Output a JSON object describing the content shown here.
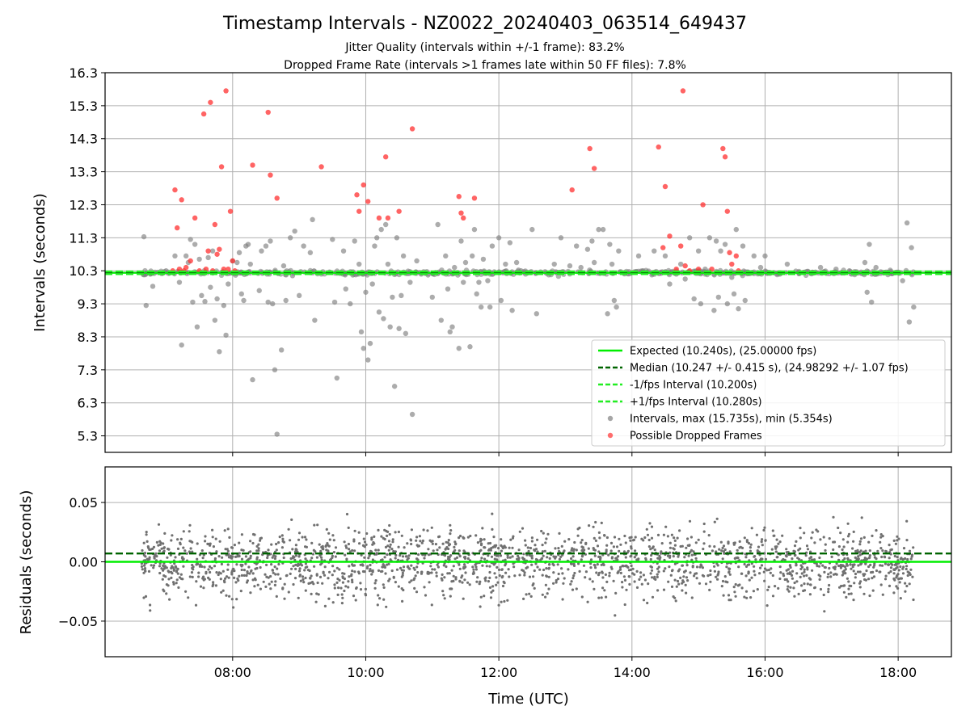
{
  "title": "Timestamp Intervals - NZ0022_20240403_063514_649437",
  "subtitle_1": "Jitter Quality (intervals within +/-1 frame): 83.2%",
  "subtitle_2": "Dropped Frame Rate (intervals >1 frames late within 50 FF files): 7.8%",
  "chart_data": [
    {
      "type": "scatter",
      "ylabel": "Intervals (seconds)",
      "ylim": [
        4.8,
        16.3
      ],
      "yticks": [
        "5.3",
        "6.3",
        "7.3",
        "8.3",
        "9.3",
        "10.3",
        "11.3",
        "12.3",
        "13.3",
        "14.3",
        "15.3",
        "16.3"
      ],
      "xlim": [
        "06:05",
        "18:48"
      ],
      "grid": true,
      "legend_position": "lower-right",
      "reference_lines": [
        {
          "name": "Expected (10.240s), (25.00000 fps)",
          "y": 10.24,
          "style": "solid",
          "color": "#00ee00"
        },
        {
          "name": "Median (10.247 +/- 0.415 s), (24.98292 +/- 1.07 fps)",
          "y": 10.247,
          "style": "dashed",
          "color": "#006400"
        },
        {
          "name": "-1/fps Interval (10.200s)",
          "y": 10.2,
          "style": "dashed",
          "color": "#22ee22"
        },
        {
          "name": "+1/fps Interval (10.280s)",
          "y": 10.28,
          "style": "dashed",
          "color": "#22ee22"
        }
      ],
      "series": [
        {
          "name": "Intervals, max (15.735s), min (5.354s)",
          "color": "#808080",
          "points_note": "sampled outliers plus dense band near 10.24 s",
          "points": [
            [
              "06:40",
              11.33
            ],
            [
              "06:42",
              9.25
            ],
            [
              "06:48",
              9.83
            ],
            [
              "07:00",
              10.3
            ],
            [
              "07:08",
              10.75
            ],
            [
              "07:12",
              9.95
            ],
            [
              "07:14",
              8.05
            ],
            [
              "07:18",
              10.75
            ],
            [
              "07:20",
              10.55
            ],
            [
              "07:22",
              11.25
            ],
            [
              "07:24",
              9.35
            ],
            [
              "07:26",
              11.1
            ],
            [
              "07:28",
              8.6
            ],
            [
              "07:30",
              10.65
            ],
            [
              "07:32",
              9.55
            ],
            [
              "07:35",
              9.37
            ],
            [
              "07:38",
              10.7
            ],
            [
              "07:40",
              9.8
            ],
            [
              "07:42",
              10.9
            ],
            [
              "07:44",
              8.8
            ],
            [
              "07:46",
              9.45
            ],
            [
              "07:48",
              7.85
            ],
            [
              "07:52",
              9.25
            ],
            [
              "07:54",
              8.35
            ],
            [
              "07:56",
              9.9
            ],
            [
              "08:00",
              10.6
            ],
            [
              "08:04",
              10.55
            ],
            [
              "08:06",
              10.85
            ],
            [
              "08:08",
              9.6
            ],
            [
              "08:10",
              9.4
            ],
            [
              "08:12",
              11.05
            ],
            [
              "08:14",
              11.1
            ],
            [
              "08:16",
              10.5
            ],
            [
              "08:18",
              7.0
            ],
            [
              "08:24",
              9.7
            ],
            [
              "08:26",
              10.9
            ],
            [
              "08:30",
              11.05
            ],
            [
              "08:32",
              9.35
            ],
            [
              "08:34",
              11.2
            ],
            [
              "08:36",
              9.3
            ],
            [
              "08:38",
              7.3
            ],
            [
              "08:40",
              5.35
            ],
            [
              "08:44",
              7.9
            ],
            [
              "08:46",
              10.45
            ],
            [
              "08:48",
              9.4
            ],
            [
              "08:52",
              11.3
            ],
            [
              "08:54",
              10.15
            ],
            [
              "08:56",
              11.5
            ],
            [
              "09:00",
              9.55
            ],
            [
              "09:04",
              11.05
            ],
            [
              "09:10",
              10.85
            ],
            [
              "09:12",
              11.85
            ],
            [
              "09:14",
              8.8
            ],
            [
              "09:30",
              11.25
            ],
            [
              "09:32",
              9.35
            ],
            [
              "09:34",
              7.05
            ],
            [
              "09:40",
              10.9
            ],
            [
              "09:42",
              9.75
            ],
            [
              "09:46",
              9.3
            ],
            [
              "09:50",
              11.2
            ],
            [
              "09:54",
              10.5
            ],
            [
              "09:56",
              8.45
            ],
            [
              "09:58",
              7.95
            ],
            [
              "10:00",
              9.65
            ],
            [
              "10:02",
              7.6
            ],
            [
              "10:04",
              8.1
            ],
            [
              "10:06",
              9.9
            ],
            [
              "10:08",
              11.05
            ],
            [
              "10:10",
              11.3
            ],
            [
              "10:12",
              9.05
            ],
            [
              "10:14",
              11.55
            ],
            [
              "10:16",
              8.85
            ],
            [
              "10:18",
              11.7
            ],
            [
              "10:20",
              10.5
            ],
            [
              "10:22",
              8.6
            ],
            [
              "10:24",
              9.5
            ],
            [
              "10:26",
              6.8
            ],
            [
              "10:28",
              11.3
            ],
            [
              "10:30",
              8.55
            ],
            [
              "10:32",
              9.55
            ],
            [
              "10:34",
              10.75
            ],
            [
              "10:36",
              8.4
            ],
            [
              "10:40",
              9.95
            ],
            [
              "10:42",
              5.95
            ],
            [
              "10:46",
              10.6
            ],
            [
              "10:50",
              10.2
            ],
            [
              "11:00",
              9.5
            ],
            [
              "11:05",
              11.7
            ],
            [
              "11:08",
              8.8
            ],
            [
              "11:12",
              10.75
            ],
            [
              "11:14",
              9.75
            ],
            [
              "11:16",
              8.45
            ],
            [
              "11:18",
              8.6
            ],
            [
              "11:20",
              10.4
            ],
            [
              "11:24",
              7.95
            ],
            [
              "11:26",
              11.2
            ],
            [
              "11:28",
              9.95
            ],
            [
              "11:30",
              10.55
            ],
            [
              "11:34",
              8.0
            ],
            [
              "11:36",
              10.75
            ],
            [
              "11:38",
              11.55
            ],
            [
              "11:40",
              9.6
            ],
            [
              "11:42",
              9.95
            ],
            [
              "11:44",
              9.2
            ],
            [
              "11:46",
              10.65
            ],
            [
              "11:50",
              10.0
            ],
            [
              "11:52",
              9.2
            ],
            [
              "11:54",
              11.05
            ],
            [
              "12:00",
              11.3
            ],
            [
              "12:02",
              9.4
            ],
            [
              "12:06",
              10.5
            ],
            [
              "12:10",
              11.15
            ],
            [
              "12:12",
              9.1
            ],
            [
              "12:16",
              10.55
            ],
            [
              "12:20",
              10.3
            ],
            [
              "12:30",
              11.55
            ],
            [
              "12:34",
              9.0
            ],
            [
              "12:50",
              10.5
            ],
            [
              "12:56",
              11.3
            ],
            [
              "13:04",
              10.45
            ],
            [
              "13:10",
              11.05
            ],
            [
              "13:14",
              10.4
            ],
            [
              "13:20",
              10.95
            ],
            [
              "13:24",
              11.2
            ],
            [
              "13:26",
              10.55
            ],
            [
              "13:30",
              11.55
            ],
            [
              "13:34",
              11.55
            ],
            [
              "13:38",
              9.0
            ],
            [
              "13:40",
              11.1
            ],
            [
              "13:42",
              10.5
            ],
            [
              "13:44",
              9.4
            ],
            [
              "13:46",
              9.2
            ],
            [
              "13:48",
              10.9
            ],
            [
              "14:06",
              10.75
            ],
            [
              "14:10",
              10.3
            ],
            [
              "14:20",
              10.9
            ],
            [
              "14:30",
              10.75
            ],
            [
              "14:34",
              9.9
            ],
            [
              "14:40",
              10.2
            ],
            [
              "14:44",
              10.5
            ],
            [
              "14:48",
              10.05
            ],
            [
              "14:52",
              11.3
            ],
            [
              "14:56",
              9.45
            ],
            [
              "15:00",
              10.9
            ],
            [
              "15:02",
              9.3
            ],
            [
              "15:06",
              10.35
            ],
            [
              "15:10",
              11.3
            ],
            [
              "15:14",
              9.1
            ],
            [
              "15:16",
              11.2
            ],
            [
              "15:18",
              9.5
            ],
            [
              "15:20",
              10.9
            ],
            [
              "15:24",
              11.1
            ],
            [
              "15:26",
              9.3
            ],
            [
              "15:30",
              10.1
            ],
            [
              "15:32",
              9.6
            ],
            [
              "15:34",
              11.55
            ],
            [
              "15:36",
              9.15
            ],
            [
              "15:40",
              11.05
            ],
            [
              "15:42",
              9.4
            ],
            [
              "15:50",
              10.75
            ],
            [
              "15:56",
              10.4
            ],
            [
              "16:00",
              10.75
            ],
            [
              "16:20",
              10.5
            ],
            [
              "16:30",
              10.25
            ],
            [
              "16:50",
              10.4
            ],
            [
              "17:04",
              10.35
            ],
            [
              "17:16",
              10.3
            ],
            [
              "17:30",
              10.55
            ],
            [
              "17:32",
              9.65
            ],
            [
              "17:34",
              11.1
            ],
            [
              "17:36",
              9.35
            ],
            [
              "17:40",
              10.4
            ],
            [
              "18:04",
              10.0
            ],
            [
              "18:08",
              11.75
            ],
            [
              "18:10",
              8.75
            ],
            [
              "18:12",
              11.0
            ],
            [
              "18:14",
              9.2
            ]
          ]
        },
        {
          "name": "Possible Dropped Frames",
          "color": "#ff3030",
          "points": [
            [
              "07:06",
              10.3
            ],
            [
              "07:08",
              12.75
            ],
            [
              "07:10",
              11.6
            ],
            [
              "07:12",
              10.35
            ],
            [
              "07:14",
              12.45
            ],
            [
              "07:16",
              10.3
            ],
            [
              "07:18",
              10.4
            ],
            [
              "07:22",
              10.6
            ],
            [
              "07:26",
              11.9
            ],
            [
              "07:30",
              10.3
            ],
            [
              "07:34",
              15.05
            ],
            [
              "07:36",
              10.35
            ],
            [
              "07:38",
              10.9
            ],
            [
              "07:40",
              15.4
            ],
            [
              "07:42",
              10.3
            ],
            [
              "07:44",
              11.7
            ],
            [
              "07:46",
              10.8
            ],
            [
              "07:48",
              10.95
            ],
            [
              "07:50",
              13.45
            ],
            [
              "07:52",
              10.35
            ],
            [
              "07:54",
              15.75
            ],
            [
              "07:56",
              10.35
            ],
            [
              "07:58",
              12.1
            ],
            [
              "08:00",
              10.6
            ],
            [
              "08:02",
              10.3
            ],
            [
              "08:18",
              13.5
            ],
            [
              "08:32",
              15.1
            ],
            [
              "08:34",
              13.2
            ],
            [
              "08:40",
              12.5
            ],
            [
              "09:20",
              13.45
            ],
            [
              "09:52",
              12.6
            ],
            [
              "09:54",
              12.1
            ],
            [
              "09:58",
              12.9
            ],
            [
              "10:02",
              12.4
            ],
            [
              "10:12",
              11.9
            ],
            [
              "10:18",
              13.75
            ],
            [
              "10:20",
              11.9
            ],
            [
              "10:30",
              12.1
            ],
            [
              "10:42",
              14.6
            ],
            [
              "11:24",
              12.55
            ],
            [
              "11:26",
              12.05
            ],
            [
              "11:28",
              11.9
            ],
            [
              "11:38",
              12.5
            ],
            [
              "13:06",
              12.75
            ],
            [
              "13:22",
              14.0
            ],
            [
              "13:26",
              13.4
            ],
            [
              "14:24",
              14.05
            ],
            [
              "14:28",
              11.0
            ],
            [
              "14:30",
              12.85
            ],
            [
              "14:34",
              11.35
            ],
            [
              "14:40",
              10.35
            ],
            [
              "14:44",
              11.05
            ],
            [
              "14:46",
              15.75
            ],
            [
              "14:48",
              10.45
            ],
            [
              "14:52",
              10.3
            ],
            [
              "15:00",
              10.35
            ],
            [
              "15:04",
              12.3
            ],
            [
              "15:12",
              10.35
            ],
            [
              "15:22",
              14.0
            ],
            [
              "15:24",
              13.75
            ],
            [
              "15:26",
              12.1
            ],
            [
              "15:28",
              10.85
            ],
            [
              "15:30",
              10.5
            ],
            [
              "15:34",
              10.75
            ],
            [
              "15:36",
              10.3
            ]
          ]
        }
      ]
    },
    {
      "type": "scatter",
      "xlabel": "Time (UTC)",
      "ylabel": "Residuals (seconds)",
      "ylim": [
        -0.08,
        0.08
      ],
      "yticks": [
        "−0.05",
        "0.00",
        "0.05"
      ],
      "xticks": [
        "08:00",
        "10:00",
        "12:00",
        "14:00",
        "16:00",
        "18:00"
      ],
      "xlim": [
        "06:05",
        "18:48"
      ],
      "grid": true,
      "reference_lines": [
        {
          "y": 0.0,
          "style": "solid",
          "color": "#00ee00"
        },
        {
          "y": 0.007,
          "style": "dashed",
          "color": "#006400"
        }
      ],
      "series": [
        {
          "name": "Residuals",
          "color": "#707070",
          "distribution_note": "dense band of points between 06:38 and 18:14",
          "time_range": [
            "06:38",
            "18:14"
          ],
          "spread": 0.02
        }
      ]
    }
  ]
}
